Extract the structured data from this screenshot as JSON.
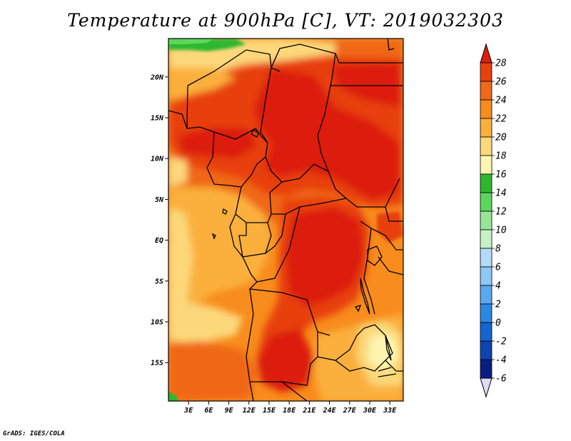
{
  "title": "Temperature at 900hPa [C], VT: 2019032303",
  "credit": "GrADS: IGES/COLA",
  "map": {
    "lat_labels": [
      {
        "lat": 20,
        "text": "20N"
      },
      {
        "lat": 15,
        "text": "15N"
      },
      {
        "lat": 10,
        "text": "10N"
      },
      {
        "lat": 5,
        "text": "5N"
      },
      {
        "lat": 0,
        "text": "EQ"
      },
      {
        "lat": -5,
        "text": "5S"
      },
      {
        "lat": -10,
        "text": "10S"
      },
      {
        "lat": -15,
        "text": "15S"
      }
    ],
    "lon_labels": [
      {
        "lon": 3,
        "text": "3E"
      },
      {
        "lon": 6,
        "text": "6E"
      },
      {
        "lon": 9,
        "text": "9E"
      },
      {
        "lon": 12,
        "text": "12E"
      },
      {
        "lon": 15,
        "text": "15E"
      },
      {
        "lon": 18,
        "text": "18E"
      },
      {
        "lon": 21,
        "text": "21E"
      },
      {
        "lon": 24,
        "text": "24E"
      },
      {
        "lon": 27,
        "text": "27E"
      },
      {
        "lon": 30,
        "text": "30E"
      },
      {
        "lon": 33,
        "text": "33E"
      }
    ],
    "lon_range": [
      0,
      35
    ],
    "lat_range": [
      -19.7,
      24.7
    ]
  },
  "colorbar": {
    "levels": [
      {
        "value": "28",
        "color": "#dc1e0c"
      },
      {
        "value": "26",
        "color": "#e8400e"
      },
      {
        "value": "24",
        "color": "#f06818"
      },
      {
        "value": "22",
        "color": "#f88c1c"
      },
      {
        "value": "20",
        "color": "#fbb03c"
      },
      {
        "value": "18",
        "color": "#fcd87a"
      },
      {
        "value": "16",
        "color": "#fef6b0"
      },
      {
        "value": "14",
        "color": "#2eb82e"
      },
      {
        "value": "12",
        "color": "#5cd65c"
      },
      {
        "value": "10",
        "color": "#96e696"
      },
      {
        "value": "8",
        "color": "#c6f3c6"
      },
      {
        "value": "6",
        "color": "#b4dcfa"
      },
      {
        "value": "4",
        "color": "#8cc8f8"
      },
      {
        "value": "2",
        "color": "#5aa8f0"
      },
      {
        "value": "0",
        "color": "#2c88e4"
      },
      {
        "value": "-2",
        "color": "#1464d2"
      },
      {
        "value": "-4",
        "color": "#0c44b0"
      },
      {
        "value": "-6",
        "color": "#0a1e82"
      }
    ],
    "top_arrow_color": "#dc1e0c",
    "bottom_arrow_color": "#dcdcf6",
    "bottom_bin_color": "#0a1478"
  },
  "palette": {
    "t28": "#dc1e0c",
    "t26": "#e8400e",
    "t24": "#f06818",
    "t22": "#f88c1c",
    "t20": "#fbb03c",
    "t18": "#fcd87a",
    "t16": "#fef6b0",
    "t14": "#2eb82e",
    "t12": "#5cd65c"
  }
}
